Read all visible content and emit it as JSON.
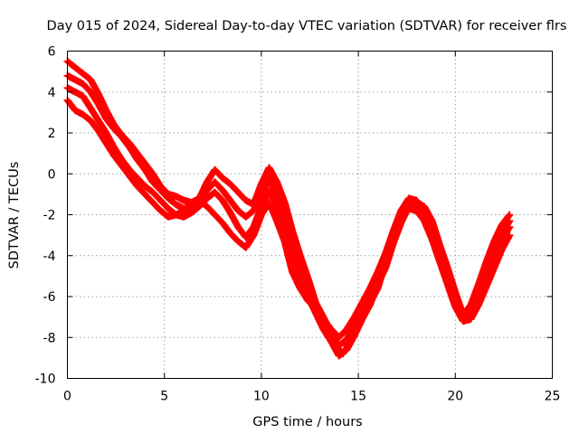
{
  "chart_data": {
    "type": "scatter",
    "title": "Day 015 of 2024, Sidereal Day-to-day VTEC variation (SDTVAR) for receiver flrs",
    "xlabel": "GPS time / hours",
    "ylabel": "SDTVAR / TECUs",
    "xlim": [
      0,
      25
    ],
    "ylim": [
      -10,
      6
    ],
    "xticks": [
      "0",
      "5",
      "10",
      "15",
      "20",
      "25"
    ],
    "yticks": [
      "6",
      "4",
      "2",
      "0",
      "-2",
      "-4",
      "-6",
      "-8",
      "-10"
    ],
    "grid": true,
    "marker": "plus",
    "color": "#ff0000",
    "series": [
      {
        "x": [
          0.0,
          0.4,
          0.8,
          1.2,
          1.6,
          2.0,
          2.4,
          2.8,
          3.2,
          3.6,
          4.0,
          4.4,
          4.8,
          5.2,
          5.6,
          6.0,
          6.4,
          6.8,
          7.2,
          7.6,
          8.0,
          8.4,
          8.8,
          9.2,
          9.6,
          10.0,
          10.4,
          10.8,
          11.2,
          11.6,
          12.0,
          12.4,
          12.8,
          13.2,
          13.6,
          14.0,
          14.2,
          14.4,
          14.8,
          15.2,
          15.6,
          16.0,
          16.4,
          16.8,
          17.2,
          17.6,
          18.0,
          18.4,
          18.8,
          19.2,
          19.6,
          20.0,
          20.4,
          20.8,
          21.2,
          21.6,
          22.0,
          22.4,
          22.8
        ],
        "y": [
          5.5,
          5.2,
          4.9,
          4.6,
          3.9,
          3.1,
          2.4,
          1.9,
          1.5,
          1.0,
          0.5,
          0.0,
          -0.6,
          -1.0,
          -1.1,
          -1.3,
          -1.4,
          -1.2,
          -0.4,
          0.2,
          -0.2,
          -0.5,
          -0.9,
          -1.3,
          -1.5,
          -0.5,
          0.3,
          -0.4,
          -1.4,
          -2.8,
          -4.0,
          -5.1,
          -6.3,
          -7.0,
          -7.8,
          -8.6,
          -8.8,
          -8.5,
          -7.6,
          -6.9,
          -6.3,
          -5.6,
          -4.3,
          -3.1,
          -2.1,
          -1.5,
          -1.4,
          -1.6,
          -2.3,
          -3.5,
          -4.6,
          -5.8,
          -6.9,
          -6.4,
          -5.4,
          -4.3,
          -3.3,
          -2.5,
          -2.0
        ]
      },
      {
        "x": [
          0.0,
          0.4,
          0.8,
          1.2,
          1.6,
          2.0,
          2.4,
          2.8,
          3.2,
          3.6,
          4.0,
          4.4,
          4.8,
          5.2,
          5.6,
          6.0,
          6.4,
          6.8,
          7.2,
          7.6,
          8.0,
          8.4,
          8.8,
          9.2,
          9.6,
          10.0,
          10.4,
          10.8,
          11.2,
          11.6,
          12.0,
          12.4,
          12.8,
          13.2,
          13.6,
          14.0,
          14.4,
          14.8,
          15.2,
          15.6,
          16.0,
          16.4,
          16.8,
          17.2,
          17.6,
          18.0,
          18.4,
          18.8,
          19.2,
          19.6,
          20.0,
          20.4,
          20.8,
          21.2,
          21.6,
          22.0,
          22.4,
          22.8
        ],
        "y": [
          4.8,
          4.6,
          4.4,
          4.0,
          3.4,
          2.7,
          2.2,
          1.8,
          1.3,
          0.7,
          0.2,
          -0.4,
          -0.8,
          -1.2,
          -1.5,
          -1.7,
          -1.6,
          -1.4,
          -0.8,
          -0.4,
          -0.8,
          -1.3,
          -1.8,
          -2.1,
          -1.8,
          -1.0,
          -0.2,
          -1.0,
          -2.2,
          -3.6,
          -4.7,
          -5.6,
          -6.5,
          -7.3,
          -7.9,
          -8.4,
          -8.1,
          -7.4,
          -6.8,
          -6.0,
          -5.0,
          -3.9,
          -2.8,
          -1.8,
          -1.2,
          -1.3,
          -1.8,
          -2.6,
          -3.8,
          -4.9,
          -6.0,
          -6.9,
          -6.6,
          -5.8,
          -4.8,
          -3.8,
          -2.9,
          -2.3
        ]
      },
      {
        "x": [
          0.0,
          0.4,
          0.8,
          1.2,
          1.6,
          2.0,
          2.4,
          2.8,
          3.2,
          3.6,
          4.0,
          4.4,
          4.8,
          5.2,
          5.6,
          6.0,
          6.4,
          6.8,
          7.2,
          7.6,
          8.0,
          8.4,
          8.8,
          9.2,
          9.6,
          10.0,
          10.4,
          10.8,
          11.2,
          11.6,
          12.0,
          12.4,
          12.8,
          13.2,
          13.6,
          14.0,
          14.4,
          14.8,
          15.2,
          15.6,
          16.0,
          16.4,
          16.8,
          17.2,
          17.6,
          18.0,
          18.4,
          18.8,
          19.2,
          19.6,
          20.0,
          20.4,
          20.8,
          21.2,
          21.6,
          22.0,
          22.4,
          22.8
        ],
        "y": [
          4.2,
          4.0,
          3.8,
          3.2,
          2.6,
          2.0,
          1.3,
          0.7,
          0.2,
          -0.2,
          -0.6,
          -0.9,
          -1.3,
          -1.7,
          -2.0,
          -2.1,
          -1.9,
          -1.6,
          -1.2,
          -0.9,
          -1.3,
          -1.9,
          -2.6,
          -3.1,
          -2.6,
          -1.6,
          -0.8,
          -1.6,
          -2.8,
          -4.2,
          -5.3,
          -6.0,
          -6.8,
          -7.6,
          -8.2,
          -8.9,
          -8.6,
          -7.9,
          -7.1,
          -6.4,
          -5.4,
          -4.6,
          -3.4,
          -2.4,
          -1.6,
          -1.5,
          -2.0,
          -2.9,
          -4.1,
          -5.2,
          -6.3,
          -7.1,
          -6.9,
          -6.1,
          -5.1,
          -4.1,
          -3.2,
          -2.6
        ]
      },
      {
        "x": [
          0.0,
          0.4,
          0.8,
          1.2,
          1.6,
          2.0,
          2.4,
          2.8,
          3.2,
          3.6,
          4.0,
          4.4,
          4.8,
          5.2,
          5.6,
          6.0,
          6.4,
          6.8,
          7.2,
          7.6,
          8.0,
          8.4,
          8.8,
          9.2,
          9.6,
          10.0,
          10.4,
          10.8,
          11.2,
          11.6,
          12.0,
          12.4,
          12.8,
          13.2,
          13.6,
          14.0,
          14.4,
          14.8,
          15.2,
          15.6,
          16.0,
          16.4,
          16.8,
          17.2,
          17.6,
          18.0,
          18.4,
          18.8,
          19.2,
          19.6,
          20.0,
          20.4,
          20.8,
          21.2,
          21.6,
          22.0,
          22.4,
          22.8
        ],
        "y": [
          3.6,
          3.1,
          2.9,
          2.6,
          2.1,
          1.5,
          0.9,
          0.4,
          -0.1,
          -0.6,
          -1.0,
          -1.4,
          -1.8,
          -2.1,
          -2.0,
          -1.8,
          -1.5,
          -1.3,
          -1.6,
          -2.0,
          -2.4,
          -2.9,
          -3.3,
          -3.6,
          -3.0,
          -2.0,
          -1.4,
          -2.3,
          -3.3,
          -4.8,
          -5.6,
          -6.2,
          -6.6,
          -7.1,
          -7.6,
          -8.0,
          -7.6,
          -7.0,
          -6.3,
          -5.6,
          -4.8,
          -3.9,
          -2.9,
          -2.1,
          -1.7,
          -1.8,
          -2.3,
          -3.2,
          -4.3,
          -5.4,
          -6.5,
          -7.2,
          -7.1,
          -6.4,
          -5.5,
          -4.6,
          -3.7,
          -3.0
        ]
      }
    ]
  }
}
